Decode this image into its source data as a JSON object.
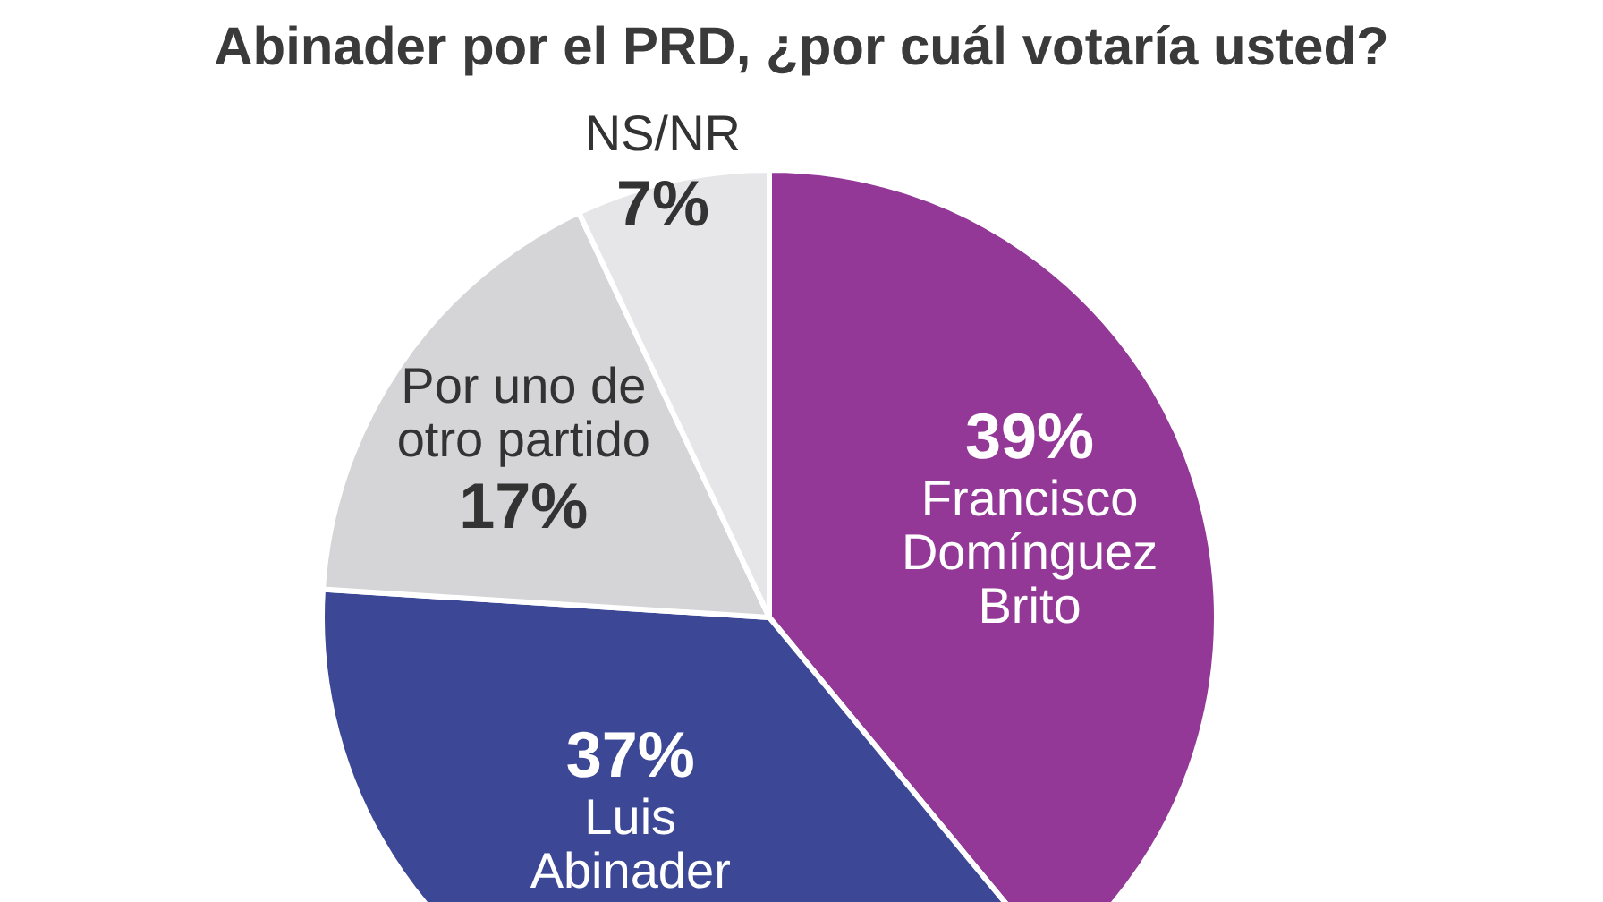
{
  "chart_data": {
    "type": "pie",
    "title": "Abinader por el PRD, ¿por cuál votaría usted?",
    "categories": [
      "Francisco\nDomínguez\nBrito",
      "Luis\nAbinader",
      "Por uno de\notro partido",
      "NS/NR"
    ],
    "values": [
      39,
      37,
      17,
      7
    ],
    "value_labels": [
      "39%",
      "37%",
      "17%",
      "7%"
    ],
    "colors": [
      "#933896",
      "#3c4796",
      "#d5d5d7",
      "#e6e6e8"
    ],
    "legend": false
  }
}
